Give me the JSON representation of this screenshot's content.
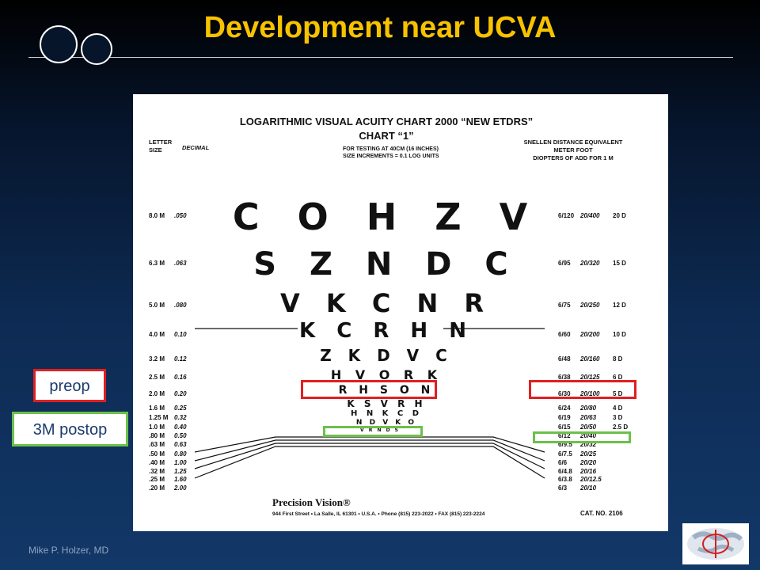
{
  "slide": {
    "title": "Development near UCVA",
    "author": "Mike P. Holzer, MD",
    "labels": {
      "preop": "preop",
      "postop": "3M postop"
    },
    "colors": {
      "title": "#f7c200",
      "preop": "#e02020",
      "postop": "#6cc04a"
    }
  },
  "chart": {
    "title": "LOGARITHMIC VISUAL ACUITY CHART 2000  “NEW ETDRS”",
    "subtitle": "CHART “1”",
    "testing": [
      "FOR TESTING AT 40CM (16 INCHES)",
      "SIZE INCREMENTS = 0.1 LOG UNITS"
    ],
    "header_left": [
      "LETTER",
      "SIZE"
    ],
    "header_decimal": "DECIMAL",
    "header_right": [
      "SNELLEN DISTANCE EQUIVALENT",
      "METER  FOOT",
      "DIOPTERS OF ADD FOR 1 M"
    ],
    "rows": [
      {
        "size": "8.0 M",
        "decimal": ".050",
        "letters": "C O H Z V",
        "meter": "6/120",
        "foot": "20/400",
        "add": "20 D"
      },
      {
        "size": "6.3 M",
        "decimal": ".063",
        "letters": "S Z N D C",
        "meter": "6/95",
        "foot": "20/320",
        "add": "15 D"
      },
      {
        "size": "5.0 M",
        "decimal": ".080",
        "letters": "V K C N R",
        "meter": "6/75",
        "foot": "20/250",
        "add": "12 D"
      },
      {
        "size": "4.0 M",
        "decimal": "0.10",
        "letters": "K C R H N",
        "meter": "6/60",
        "foot": "20/200",
        "add": "10 D"
      },
      {
        "size": "3.2 M",
        "decimal": "0.12",
        "letters": "Z K D V C",
        "meter": "6/48",
        "foot": "20/160",
        "add": "8 D"
      },
      {
        "size": "2.5 M",
        "decimal": "0.16",
        "letters": "H V O R K",
        "meter": "6/38",
        "foot": "20/125",
        "add": "6 D"
      },
      {
        "size": "2.0 M",
        "decimal": "0.20",
        "letters": "R H S O N",
        "meter": "6/30",
        "foot": "20/100",
        "add": "5 D"
      },
      {
        "size": "1.6 M",
        "decimal": "0.25",
        "letters": "K S V R H",
        "meter": "6/24",
        "foot": "20/80",
        "add": "4 D"
      },
      {
        "size": "1.25 M",
        "decimal": "0.32",
        "letters": "H N K C D",
        "meter": "6/19",
        "foot": "20/63",
        "add": "3 D"
      },
      {
        "size": "1.0 M",
        "decimal": "0.40",
        "letters": "N D V K O",
        "meter": "6/15",
        "foot": "20/50",
        "add": "2.5 D"
      },
      {
        "size": ".80 M",
        "decimal": "0.50",
        "letters": "",
        "meter": "6/12",
        "foot": "20/40",
        "add": ""
      },
      {
        "size": ".63 M",
        "decimal": "0.63",
        "letters": "V R N D S",
        "meter": "6/9.5",
        "foot": "20/32",
        "add": ""
      },
      {
        "size": ".50 M",
        "decimal": "0.80",
        "letters": "",
        "meter": "6/7.5",
        "foot": "20/25",
        "add": ""
      },
      {
        "size": ".40 M",
        "decimal": "1.00",
        "letters": "",
        "meter": "6/6",
        "foot": "20/20",
        "add": ""
      },
      {
        "size": ".32 M",
        "decimal": "1.25",
        "letters": "",
        "meter": "6/4.8",
        "foot": "20/16",
        "add": ""
      },
      {
        "size": ".25 M",
        "decimal": "1.60",
        "letters": "",
        "meter": "6/3.8",
        "foot": "20/12.5",
        "add": ""
      },
      {
        "size": ".20 M",
        "decimal": "2.00",
        "letters": "",
        "meter": "6/3",
        "foot": "20/10",
        "add": ""
      }
    ],
    "footer_brand": "Precision Vision®",
    "footer_address": "944 First Street • La Salle, IL 61301 • U.S.A. •  Phone (815) 223-2022 • FAX (815) 223-2224",
    "catalog": "CAT. NO. 2106"
  }
}
